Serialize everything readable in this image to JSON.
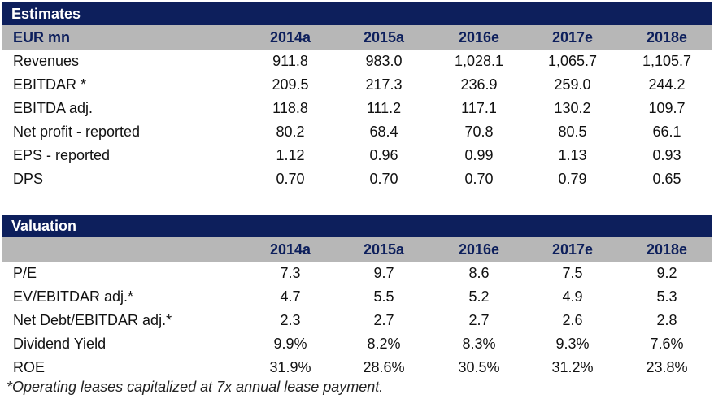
{
  "estimates": {
    "title": "Estimates",
    "unit_label": "EUR mn",
    "years": [
      "2014a",
      "2015a",
      "2016e",
      "2017e",
      "2018e"
    ],
    "rows": [
      {
        "label": "Revenues",
        "values": [
          "911.8",
          "983.0",
          "1,028.1",
          "1,065.7",
          "1,105.7"
        ]
      },
      {
        "label": "EBITDAR *",
        "values": [
          "209.5",
          "217.3",
          "236.9",
          "259.0",
          "244.2"
        ]
      },
      {
        "label": "EBITDA adj.",
        "values": [
          "118.8",
          "111.2",
          "117.1",
          "130.2",
          "109.7"
        ]
      },
      {
        "label": "Net profit - reported",
        "values": [
          "80.2",
          "68.4",
          "70.8",
          "80.5",
          "66.1"
        ]
      },
      {
        "label": "EPS - reported",
        "values": [
          "1.12",
          "0.96",
          "0.99",
          "1.13",
          "0.93"
        ]
      },
      {
        "label": "DPS",
        "values": [
          "0.70",
          "0.70",
          "0.70",
          "0.79",
          "0.65"
        ]
      }
    ]
  },
  "valuation": {
    "title": "Valuation",
    "years": [
      "2014a",
      "2015a",
      "2016e",
      "2017e",
      "2018e"
    ],
    "rows": [
      {
        "label": "P/E",
        "values": [
          "7.3",
          "9.7",
          "8.6",
          "7.5",
          "9.2"
        ]
      },
      {
        "label": "EV/EBITDAR adj.*",
        "values": [
          "4.7",
          "5.5",
          "5.2",
          "4.9",
          "5.3"
        ]
      },
      {
        "label": "Net Debt/EBITDAR adj.*",
        "values": [
          "2.3",
          "2.7",
          "2.7",
          "2.6",
          "2.8"
        ]
      },
      {
        "label": "Dividend Yield",
        "values": [
          "9.9%",
          "8.2%",
          "8.3%",
          "9.3%",
          "7.6%"
        ]
      },
      {
        "label": "ROE",
        "values": [
          "31.9%",
          "28.6%",
          "30.5%",
          "31.2%",
          "23.8%"
        ]
      }
    ]
  },
  "footnote": "*Operating leases capitalized at 7x annual lease payment."
}
